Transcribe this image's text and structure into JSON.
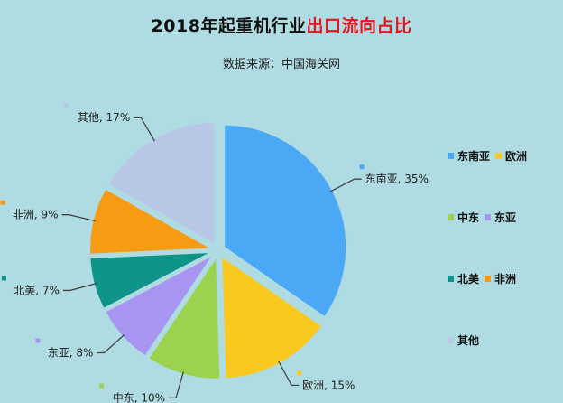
{
  "header": {
    "title_prefix": "2018年起重机行业",
    "title_highlight": "出口流向占比",
    "subtitle": "数据来源：中国海关网"
  },
  "chart_data": {
    "type": "pie",
    "title": "2018年起重机行业出口流向占比",
    "subtitle": "数据来源：中国海关网",
    "slices": [
      {
        "label": "东南亚",
        "value": 35,
        "text": "东南亚, 35%",
        "color": "#4aa8f5"
      },
      {
        "label": "欧洲",
        "value": 15,
        "text": "欧洲, 15%",
        "color": "#f9c91f"
      },
      {
        "label": "中东",
        "value": 10,
        "text": "中东, 10%",
        "color": "#9cd24e"
      },
      {
        "label": "东亚",
        "value": 8,
        "text": "东亚, 8%",
        "color": "#a895f2"
      },
      {
        "label": "北美",
        "value": 7,
        "text": "北美, 7%",
        "color": "#0e9488"
      },
      {
        "label": "非洲",
        "value": 9,
        "text": "非洲, 9%",
        "color": "#f79a14"
      },
      {
        "label": "其他",
        "value": 17,
        "text": "其他, 17%",
        "color": "#b9c7e6"
      }
    ],
    "legend_position": "right",
    "legend_rows": [
      [
        "东南亚",
        "欧洲"
      ],
      [
        "中东",
        "东亚"
      ],
      [
        "北美",
        "非洲"
      ],
      [
        "其他"
      ]
    ]
  }
}
